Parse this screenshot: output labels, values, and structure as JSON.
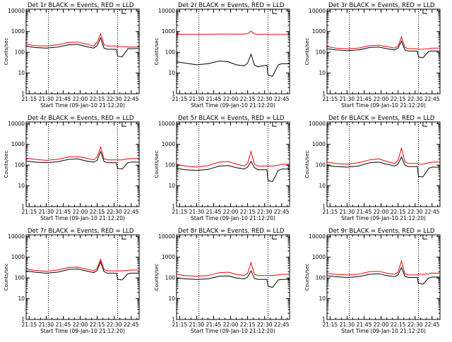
{
  "chart_data": {
    "type": "line",
    "shared": {
      "xlabel": "Start Time (09-Jan-10 21:12:20)",
      "ylabel": "Counts/sec",
      "xtick_labels": [
        "21:15",
        "21:30",
        "21:45",
        "22:00",
        "22:15",
        "22:30",
        "22:45"
      ],
      "xtick_minutes": [
        15,
        30,
        45,
        60,
        75,
        90,
        105
      ],
      "xlim_minutes": [
        12.3,
        112
      ],
      "ytick_labels": [
        "1",
        "10",
        "100",
        "1000",
        "10000"
      ],
      "ytick_values": [
        1,
        10,
        100,
        1000,
        10000
      ],
      "ylim": [
        1,
        12000
      ],
      "yscale": "log",
      "dotted_vlines_minutes": [
        32,
        93
      ],
      "marker_minute": 97,
      "colors": {
        "events": "#000000",
        "lld": "#ff0000",
        "axes": "#000000"
      }
    },
    "panels": [
      {
        "title": "Det 1r BLACK = Events, RED = LLD",
        "series": [
          {
            "name": "Events",
            "color": "#000000",
            "x_minutes": [
              12,
              20,
              30,
              40,
              50,
              58,
              65,
              72,
              75,
              78,
              81,
              84,
              88,
              92,
              93,
              97,
              102,
              105,
              112
            ],
            "values": [
              200,
              170,
              160,
              180,
              230,
              240,
              190,
              160,
              210,
              500,
              160,
              140,
              140,
              140,
              65,
              60,
              150,
              150,
              150
            ]
          },
          {
            "name": "LLD",
            "color": "#ff0000",
            "x_minutes": [
              12,
              20,
              30,
              40,
              50,
              58,
              65,
              72,
              75,
              78,
              81,
              84,
              88,
              92,
              93,
              97,
              102,
              105,
              112
            ],
            "values": [
              250,
              210,
              200,
              230,
              300,
              310,
              250,
              200,
              300,
              800,
              230,
              200,
              200,
              200,
              190,
              190,
              180,
              180,
              180
            ]
          }
        ]
      },
      {
        "title": "Det 2r BLACK = Events, RED = LLD",
        "series": [
          {
            "name": "Events",
            "color": "#000000",
            "x_minutes": [
              12,
              20,
              30,
              40,
              50,
              58,
              65,
              72,
              75,
              78,
              81,
              84,
              88,
              92,
              93,
              97,
              102,
              105,
              112
            ],
            "values": [
              35,
              30,
              25,
              28,
              38,
              35,
              25,
              22,
              30,
              80,
              25,
              20,
              22,
              24,
              8,
              7,
              25,
              28,
              28
            ]
          },
          {
            "name": "LLD",
            "color": "#ff0000",
            "x_minutes": [
              12,
              20,
              30,
              40,
              50,
              58,
              65,
              72,
              75,
              78,
              81,
              84,
              88,
              92,
              93,
              97,
              102,
              105,
              112
            ],
            "values": [
              750,
              740,
              740,
              740,
              760,
              760,
              750,
              750,
              800,
              1050,
              760,
              740,
              740,
              740,
              720,
              720,
              730,
              730,
              730
            ]
          }
        ]
      },
      {
        "title": "Det 3r BLACK = Events, RED = LLD",
        "series": [
          {
            "name": "Events",
            "color": "#000000",
            "x_minutes": [
              12,
              20,
              30,
              40,
              50,
              58,
              65,
              72,
              75,
              78,
              81,
              84,
              88,
              92,
              93,
              97,
              102,
              105,
              112
            ],
            "values": [
              150,
              130,
              120,
              130,
              170,
              180,
              150,
              130,
              160,
              350,
              130,
              115,
              115,
              115,
              60,
              55,
              110,
              115,
              115
            ]
          },
          {
            "name": "LLD",
            "color": "#ff0000",
            "x_minutes": [
              12,
              20,
              30,
              40,
              50,
              58,
              65,
              72,
              75,
              78,
              81,
              84,
              88,
              92,
              93,
              97,
              102,
              105,
              112
            ],
            "values": [
              190,
              160,
              150,
              160,
              210,
              220,
              190,
              160,
              200,
              550,
              170,
              150,
              150,
              150,
              140,
              140,
              150,
              160,
              160
            ]
          }
        ]
      },
      {
        "title": "Det 4r BLACK = Events, RED = LLD",
        "series": [
          {
            "name": "Events",
            "color": "#000000",
            "x_minutes": [
              12,
              20,
              30,
              40,
              50,
              58,
              65,
              72,
              75,
              78,
              81,
              84,
              88,
              92,
              93,
              97,
              102,
              105,
              112
            ],
            "values": [
              160,
              140,
              130,
              145,
              190,
              200,
              160,
              140,
              170,
              450,
              150,
              130,
              130,
              130,
              70,
              65,
              130,
              140,
              140
            ]
          },
          {
            "name": "LLD",
            "color": "#ff0000",
            "x_minutes": [
              12,
              20,
              30,
              40,
              50,
              58,
              65,
              72,
              75,
              78,
              81,
              84,
              88,
              92,
              93,
              97,
              102,
              105,
              112
            ],
            "values": [
              220,
              190,
              170,
              190,
              250,
              260,
              220,
              180,
              250,
              750,
              200,
              180,
              180,
              180,
              180,
              180,
              200,
              210,
              210
            ]
          }
        ]
      },
      {
        "title": "Det 5r BLACK = Events, RED = LLD",
        "series": [
          {
            "name": "Events",
            "color": "#000000",
            "x_minutes": [
              12,
              20,
              30,
              40,
              50,
              58,
              65,
              72,
              75,
              78,
              81,
              84,
              88,
              92,
              93,
              97,
              102,
              105,
              112
            ],
            "values": [
              70,
              60,
              55,
              62,
              90,
              95,
              75,
              65,
              80,
              150,
              75,
              60,
              60,
              60,
              18,
              16,
              55,
              65,
              65
            ]
          },
          {
            "name": "LLD",
            "color": "#ff0000",
            "x_minutes": [
              12,
              20,
              30,
              40,
              50,
              58,
              65,
              72,
              75,
              78,
              81,
              84,
              88,
              92,
              93,
              97,
              102,
              105,
              112
            ],
            "values": [
              110,
              90,
              80,
              95,
              140,
              150,
              110,
              90,
              120,
              450,
              110,
              90,
              90,
              90,
              90,
              90,
              100,
              110,
              110
            ]
          }
        ]
      },
      {
        "title": "Det 6r BLACK = Events, RED = LLD",
        "series": [
          {
            "name": "Events",
            "color": "#000000",
            "x_minutes": [
              12,
              20,
              30,
              40,
              50,
              58,
              65,
              72,
              75,
              78,
              81,
              84,
              88,
              92,
              93,
              97,
              102,
              105,
              112
            ],
            "values": [
              100,
              85,
              80,
              90,
              130,
              140,
              110,
              90,
              110,
              250,
              100,
              85,
              85,
              85,
              28,
              27,
              70,
              80,
              80
            ]
          },
          {
            "name": "LLD",
            "color": "#ff0000",
            "x_minutes": [
              12,
              20,
              30,
              40,
              50,
              58,
              65,
              72,
              75,
              78,
              81,
              84,
              88,
              92,
              93,
              97,
              102,
              105,
              112
            ],
            "values": [
              140,
              120,
              110,
              130,
              180,
              200,
              150,
              120,
              170,
              650,
              150,
              120,
              120,
              120,
              110,
              110,
              130,
              140,
              140
            ]
          }
        ]
      },
      {
        "title": "Det 7r BLACK = Events, RED = LLD",
        "series": [
          {
            "name": "Events",
            "color": "#000000",
            "x_minutes": [
              12,
              20,
              30,
              40,
              50,
              58,
              65,
              72,
              75,
              78,
              81,
              84,
              88,
              92,
              93,
              97,
              102,
              105,
              112
            ],
            "values": [
              220,
              190,
              170,
              190,
              260,
              270,
              220,
              180,
              230,
              600,
              200,
              170,
              170,
              170,
              85,
              80,
              160,
              170,
              170
            ]
          },
          {
            "name": "LLD",
            "color": "#ff0000",
            "x_minutes": [
              12,
              20,
              30,
              40,
              50,
              58,
              65,
              72,
              75,
              78,
              81,
              84,
              88,
              92,
              93,
              97,
              102,
              105,
              112
            ],
            "values": [
              270,
              230,
              210,
              240,
              320,
              330,
              270,
              220,
              290,
              800,
              250,
              220,
              220,
              220,
              220,
              220,
              230,
              240,
              240
            ]
          }
        ]
      },
      {
        "title": "Det 8r BLACK = Events, RED = LLD",
        "series": [
          {
            "name": "Events",
            "color": "#000000",
            "x_minutes": [
              12,
              20,
              30,
              40,
              50,
              58,
              65,
              72,
              75,
              78,
              81,
              84,
              88,
              92,
              93,
              97,
              102,
              105,
              112
            ],
            "values": [
              100,
              90,
              85,
              90,
              120,
              125,
              100,
              90,
              110,
              220,
              95,
              85,
              85,
              85,
              40,
              35,
              80,
              85,
              85
            ]
          },
          {
            "name": "LLD",
            "color": "#ff0000",
            "x_minutes": [
              12,
              20,
              30,
              40,
              50,
              58,
              65,
              72,
              75,
              78,
              81,
              84,
              88,
              92,
              93,
              97,
              102,
              105,
              112
            ],
            "values": [
              150,
              130,
              120,
              130,
              180,
              190,
              150,
              130,
              170,
              550,
              150,
              130,
              130,
              130,
              130,
              130,
              140,
              150,
              150
            ]
          }
        ]
      },
      {
        "title": "Det 9r BLACK = Events, RED = LLD",
        "series": [
          {
            "name": "Events",
            "color": "#000000",
            "x_minutes": [
              12,
              20,
              30,
              40,
              50,
              58,
              65,
              72,
              75,
              78,
              81,
              84,
              88,
              92,
              93,
              97,
              102,
              105,
              112
            ],
            "values": [
              130,
              115,
              105,
              115,
              150,
              160,
              130,
              115,
              140,
              320,
              120,
              105,
              105,
              105,
              55,
              50,
              100,
              110,
              110
            ]
          },
          {
            "name": "LLD",
            "color": "#ff0000",
            "x_minutes": [
              12,
              20,
              30,
              40,
              50,
              58,
              65,
              72,
              75,
              78,
              81,
              84,
              88,
              92,
              93,
              97,
              102,
              105,
              112
            ],
            "values": [
              170,
              150,
              140,
              150,
              200,
              210,
              170,
              150,
              190,
              650,
              160,
              140,
              140,
              140,
              150,
              150,
              160,
              170,
              170
            ]
          }
        ]
      }
    ]
  }
}
